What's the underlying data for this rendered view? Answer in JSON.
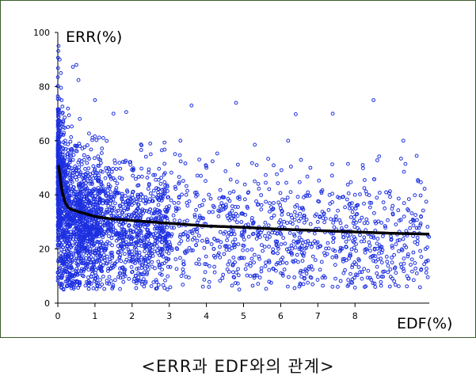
{
  "caption": "<ERR과 EDF와의 관계>",
  "chart_data": {
    "type": "scatter",
    "title": "",
    "xlabel": "EDF(%)",
    "ylabel": "ERR(%)",
    "xlim": [
      0,
      10
    ],
    "ylim": [
      0,
      100
    ],
    "x_ticks": [
      "0",
      "1",
      "2",
      "3",
      "4",
      "5",
      "6",
      "7",
      "8"
    ],
    "y_ticks": [
      "0",
      "20",
      "40",
      "60",
      "80",
      "100"
    ],
    "grid": false,
    "legend": "none",
    "point_color": "#1c2fe0",
    "curve_color": "#000000",
    "points_sample": [
      [
        0.02,
        95
      ],
      [
        0.05,
        90
      ],
      [
        0.08,
        85
      ],
      [
        0.1,
        75
      ],
      [
        0.12,
        70
      ],
      [
        0.15,
        65
      ],
      [
        0.2,
        60
      ],
      [
        0.25,
        55
      ],
      [
        0.3,
        50
      ],
      [
        0.35,
        45
      ],
      [
        0.4,
        42
      ],
      [
        0.45,
        38
      ],
      [
        0.5,
        88
      ],
      [
        0.55,
        35
      ],
      [
        0.6,
        30
      ],
      [
        0.7,
        28
      ],
      [
        0.8,
        25
      ],
      [
        0.9,
        22
      ],
      [
        1.0,
        75
      ],
      [
        1.1,
        45
      ],
      [
        1.2,
        38
      ],
      [
        1.3,
        20
      ],
      [
        1.5,
        70
      ],
      [
        1.7,
        35
      ],
      [
        2.0,
        40
      ],
      [
        2.2,
        15
      ],
      [
        2.5,
        55
      ],
      [
        2.8,
        30
      ],
      [
        3.0,
        25
      ],
      [
        3.3,
        60
      ],
      [
        3.6,
        73
      ],
      [
        4.0,
        50
      ],
      [
        4.2,
        20
      ],
      [
        4.5,
        35
      ],
      [
        4.8,
        74
      ],
      [
        5.0,
        28
      ],
      [
        5.3,
        45
      ],
      [
        5.6,
        15
      ],
      [
        6.0,
        35
      ],
      [
        6.2,
        60
      ],
      [
        6.5,
        20
      ],
      [
        6.8,
        50
      ],
      [
        7.0,
        30
      ],
      [
        7.4,
        70
      ],
      [
        7.8,
        25
      ],
      [
        8.0,
        40
      ],
      [
        8.3,
        20
      ],
      [
        8.5,
        75
      ],
      [
        8.8,
        35
      ],
      [
        9.0,
        15
      ],
      [
        9.3,
        60
      ],
      [
        9.5,
        30
      ],
      [
        9.7,
        45
      ],
      [
        9.9,
        20
      ]
    ],
    "fit_curve": [
      [
        0.02,
        51
      ],
      [
        0.05,
        48
      ],
      [
        0.1,
        42
      ],
      [
        0.2,
        37
      ],
      [
        0.3,
        35
      ],
      [
        0.5,
        34
      ],
      [
        0.75,
        33
      ],
      [
        1.0,
        32
      ],
      [
        1.5,
        31
      ],
      [
        2.0,
        30.5
      ],
      [
        3.0,
        29.5
      ],
      [
        4.0,
        28.5
      ],
      [
        5.0,
        28
      ],
      [
        6.0,
        27.3
      ],
      [
        7.0,
        26.8
      ],
      [
        8.0,
        26.3
      ],
      [
        9.0,
        25.8
      ],
      [
        10.0,
        25.5
      ]
    ]
  }
}
